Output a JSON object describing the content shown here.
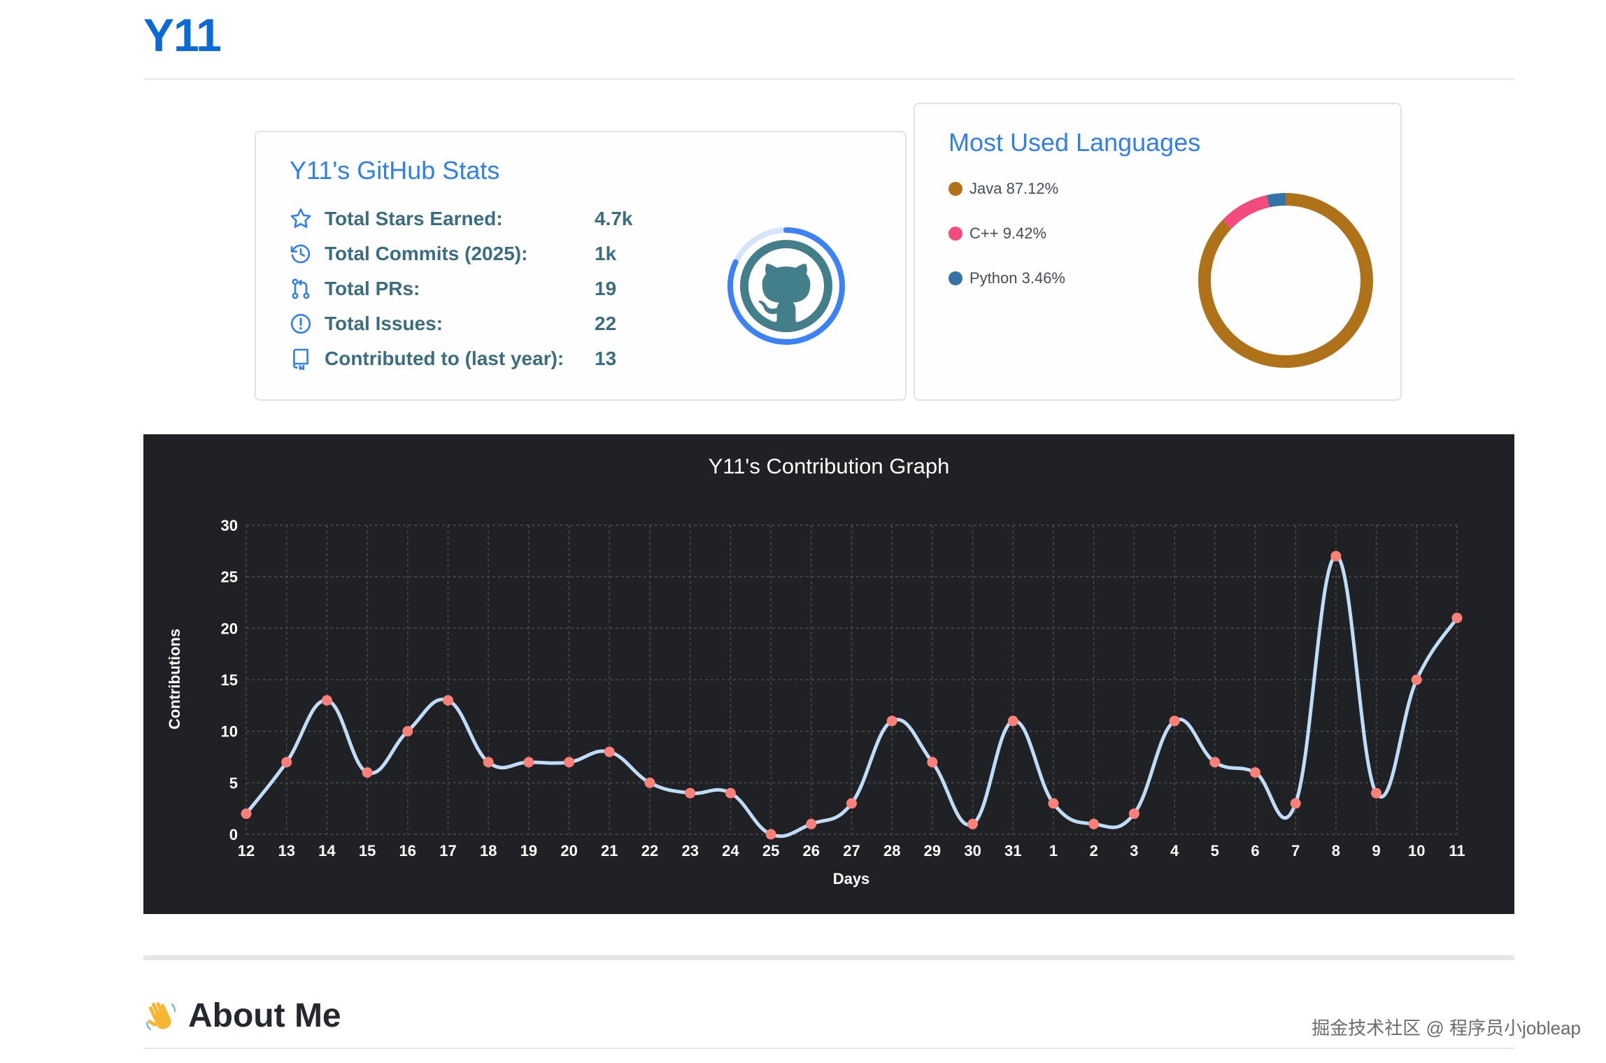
{
  "page": {
    "title": "Y11"
  },
  "stats": {
    "title": "Y11's GitHub Stats",
    "rows": [
      {
        "icon": "star-icon",
        "label": "Total Stars Earned:",
        "value": "4.7k"
      },
      {
        "icon": "history-icon",
        "label": "Total Commits (2025):",
        "value": "1k"
      },
      {
        "icon": "pull-request-icon",
        "label": "Total PRs:",
        "value": "19"
      },
      {
        "icon": "issue-icon",
        "label": "Total Issues:",
        "value": "22"
      },
      {
        "icon": "repo-icon",
        "label": "Contributed to (last year):",
        "value": "13"
      }
    ],
    "ring_icon": "github-octocat-icon",
    "ring_progress": 0.82
  },
  "languages": {
    "title": "Most Used Languages",
    "items": [
      {
        "label": "Java 87.12%",
        "name": "Java",
        "percent": 87.12,
        "color": "#b07219"
      },
      {
        "label": "C++ 9.42%",
        "name": "C++",
        "percent": 9.42,
        "color": "#f34b7d"
      },
      {
        "label": "Python 3.46%",
        "name": "Python",
        "percent": 3.46,
        "color": "#3572a5"
      }
    ]
  },
  "chart_data": {
    "type": "line",
    "title": "Y11's Contribution Graph",
    "xlabel": "Days",
    "ylabel": "Contributions",
    "ylim": [
      0,
      30
    ],
    "yticks": [
      "0",
      "5",
      "10",
      "15",
      "20",
      "25",
      "30"
    ],
    "grid": true,
    "categories": [
      "12",
      "13",
      "14",
      "15",
      "16",
      "17",
      "18",
      "19",
      "20",
      "21",
      "22",
      "23",
      "24",
      "25",
      "26",
      "27",
      "28",
      "29",
      "30",
      "31",
      "1",
      "2",
      "3",
      "4",
      "5",
      "6",
      "7",
      "8",
      "9",
      "10",
      "11"
    ],
    "values": [
      2,
      7,
      13,
      6,
      10,
      13,
      7,
      7,
      7,
      8,
      5,
      4,
      4,
      0,
      1,
      3,
      11,
      7,
      1,
      11,
      3,
      1,
      2,
      11,
      7,
      6,
      3,
      27,
      4,
      15,
      21
    ],
    "colors": {
      "background": "#202124",
      "line": "#bfdcf8",
      "point": "#fb8178",
      "grid": "#4a4c50",
      "text": "#ffffff"
    }
  },
  "about": {
    "emoji": "👋",
    "heading": "About Me"
  },
  "watermark": "掘金技术社区 @ 程序员小jobleap"
}
